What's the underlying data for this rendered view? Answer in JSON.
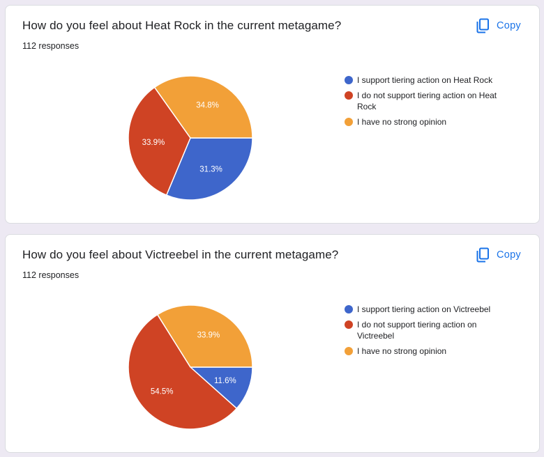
{
  "cards": [
    {
      "title": "How do you feel about Heat Rock in the current metagame?",
      "responses": "112 responses",
      "copy_label": "Copy"
    },
    {
      "title": "How do you feel about Victreebel in the current metagame?",
      "responses": "112 responses",
      "copy_label": "Copy"
    }
  ],
  "colors": {
    "support": "#3e66cb",
    "oppose": "#cf4324",
    "neutral": "#f2a038",
    "accent": "#1a73e8"
  },
  "icons": {
    "copy": "copy-icon"
  },
  "chart_data": [
    {
      "type": "pie",
      "title": "How do you feel about Heat Rock in the current metagame?",
      "slices": [
        {
          "label": "I support tiering action on Heat Rock",
          "value": 31.3,
          "display": "31.3%",
          "color": "#3e66cb"
        },
        {
          "label": "I do not support tiering action on Heat Rock",
          "value": 33.9,
          "display": "33.9%",
          "color": "#cf4324"
        },
        {
          "label": "I have no strong opinion",
          "value": 34.8,
          "display": "34.8%",
          "color": "#f2a038"
        }
      ],
      "legend_position": "right"
    },
    {
      "type": "pie",
      "title": "How do you feel about Victreebel in the current metagame?",
      "slices": [
        {
          "label": "I support tiering action on Victreebel",
          "value": 11.6,
          "display": "11.6%",
          "color": "#3e66cb"
        },
        {
          "label": "I do not support tiering action on Victreebel",
          "value": 54.5,
          "display": "54.5%",
          "color": "#cf4324"
        },
        {
          "label": "I have no strong opinion",
          "value": 33.9,
          "display": "33.9%",
          "color": "#f2a038"
        }
      ],
      "legend_position": "right"
    }
  ]
}
